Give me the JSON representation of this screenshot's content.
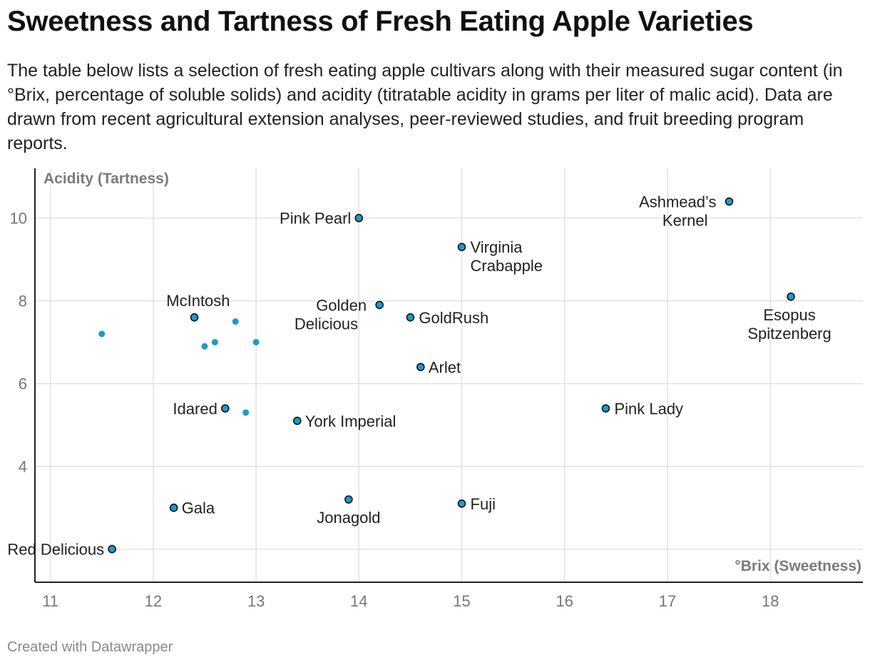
{
  "header": {
    "title": "Sweetness and Tartness of Fresh Eating Apple Varieties",
    "description": "The table below lists a selection of fresh eating apple cultivars along with their measured sugar content (in °Brix, percentage of soluble solids) and acidity (titratable acidity in grams per liter of malic acid). Data are drawn from recent agricultural extension analyses, peer-reviewed studies, and fruit breeding program reports."
  },
  "footer": {
    "credit": "Created with Datawrapper"
  },
  "colors": {
    "point": "#1a9ccc",
    "point_outline": "#111111",
    "grid": "#e2e2e2",
    "axis": "#222222",
    "tick_text": "#777777",
    "axis_title": "#7a7a7a",
    "label": "#222222"
  },
  "chart_data": {
    "type": "scatter",
    "xlabel": "°Brix (Sweetness)",
    "ylabel": "Acidity (Tartness)",
    "xlim": [
      10.85,
      18.9
    ],
    "ylim": [
      1.2,
      11.2
    ],
    "xticks": [
      11,
      12,
      13,
      14,
      15,
      16,
      17,
      18
    ],
    "yticks": [
      4,
      6,
      8,
      10
    ],
    "grid": true,
    "points": [
      {
        "name": "Pink Pearl",
        "x": 14.0,
        "y": 10.0,
        "labeled": true
      },
      {
        "name": "Ashmead’s Kernel",
        "x": 17.6,
        "y": 10.4,
        "labeled": true
      },
      {
        "name": "Virginia Crabapple",
        "x": 15.0,
        "y": 9.3,
        "labeled": true
      },
      {
        "name": "Esopus Spitzenberg",
        "x": 18.2,
        "y": 8.1,
        "labeled": true
      },
      {
        "name": "McIntosh",
        "x": 12.4,
        "y": 7.6,
        "labeled": true
      },
      {
        "name": "Golden Delicious",
        "x": 14.2,
        "y": 7.9,
        "labeled": true
      },
      {
        "name": "GoldRush",
        "x": 14.5,
        "y": 7.6,
        "labeled": true
      },
      {
        "name": "Arlet",
        "x": 14.6,
        "y": 6.4,
        "labeled": true
      },
      {
        "name": "Idared",
        "x": 12.7,
        "y": 5.4,
        "labeled": true
      },
      {
        "name": "York Imperial",
        "x": 13.4,
        "y": 5.1,
        "labeled": true
      },
      {
        "name": "Pink Lady",
        "x": 16.4,
        "y": 5.4,
        "labeled": true
      },
      {
        "name": "Gala",
        "x": 12.2,
        "y": 3.0,
        "labeled": true
      },
      {
        "name": "Jonagold",
        "x": 13.9,
        "y": 3.2,
        "labeled": true
      },
      {
        "name": "Fuji",
        "x": 15.0,
        "y": 3.1,
        "labeled": true
      },
      {
        "name": "Red Delicious",
        "x": 11.6,
        "y": 2.0,
        "labeled": true
      },
      {
        "name": "",
        "x": 11.5,
        "y": 7.2,
        "labeled": false
      },
      {
        "name": "",
        "x": 12.8,
        "y": 7.5,
        "labeled": false
      },
      {
        "name": "",
        "x": 12.5,
        "y": 6.9,
        "labeled": false
      },
      {
        "name": "",
        "x": 12.6,
        "y": 7.0,
        "labeled": false
      },
      {
        "name": "",
        "x": 13.0,
        "y": 7.0,
        "labeled": false
      },
      {
        "name": "",
        "x": 12.9,
        "y": 5.3,
        "labeled": false
      }
    ]
  }
}
